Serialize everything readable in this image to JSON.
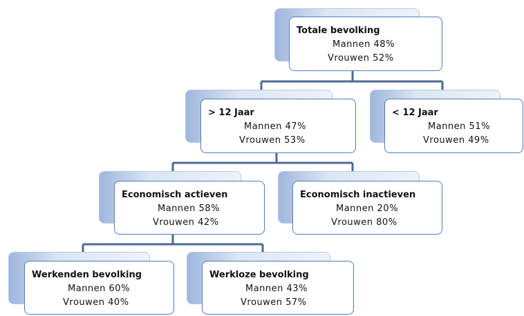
{
  "nodes": [
    {
      "title": "Totale bevolking",
      "lines": [
        "Mannen 48%",
        "Vrouwen 52%"
      ]
    },
    {
      "title": "> 12 Jaar",
      "lines": [
        "Mannen 47%",
        "Vrouwen 53%"
      ]
    },
    {
      "title": "< 12 Jaar",
      "lines": [
        "Mannen 51%",
        "Vrouwen 49%"
      ]
    },
    {
      "title": "Economisch actieven",
      "lines": [
        "Mannen 58%",
        "Vrouwen 42%"
      ]
    },
    {
      "title": "Economisch inactieven",
      "lines": [
        "Mannen 20%",
        "Vrouwen 80%"
      ]
    },
    {
      "title": "Werkenden bevolking",
      "lines": [
        "Mannen 60%",
        "Vrouwen 40%"
      ]
    },
    {
      "title": "Werkloze bevolking",
      "lines": [
        "Mannen 43%",
        "Vrouwen 57%"
      ]
    }
  ]
}
